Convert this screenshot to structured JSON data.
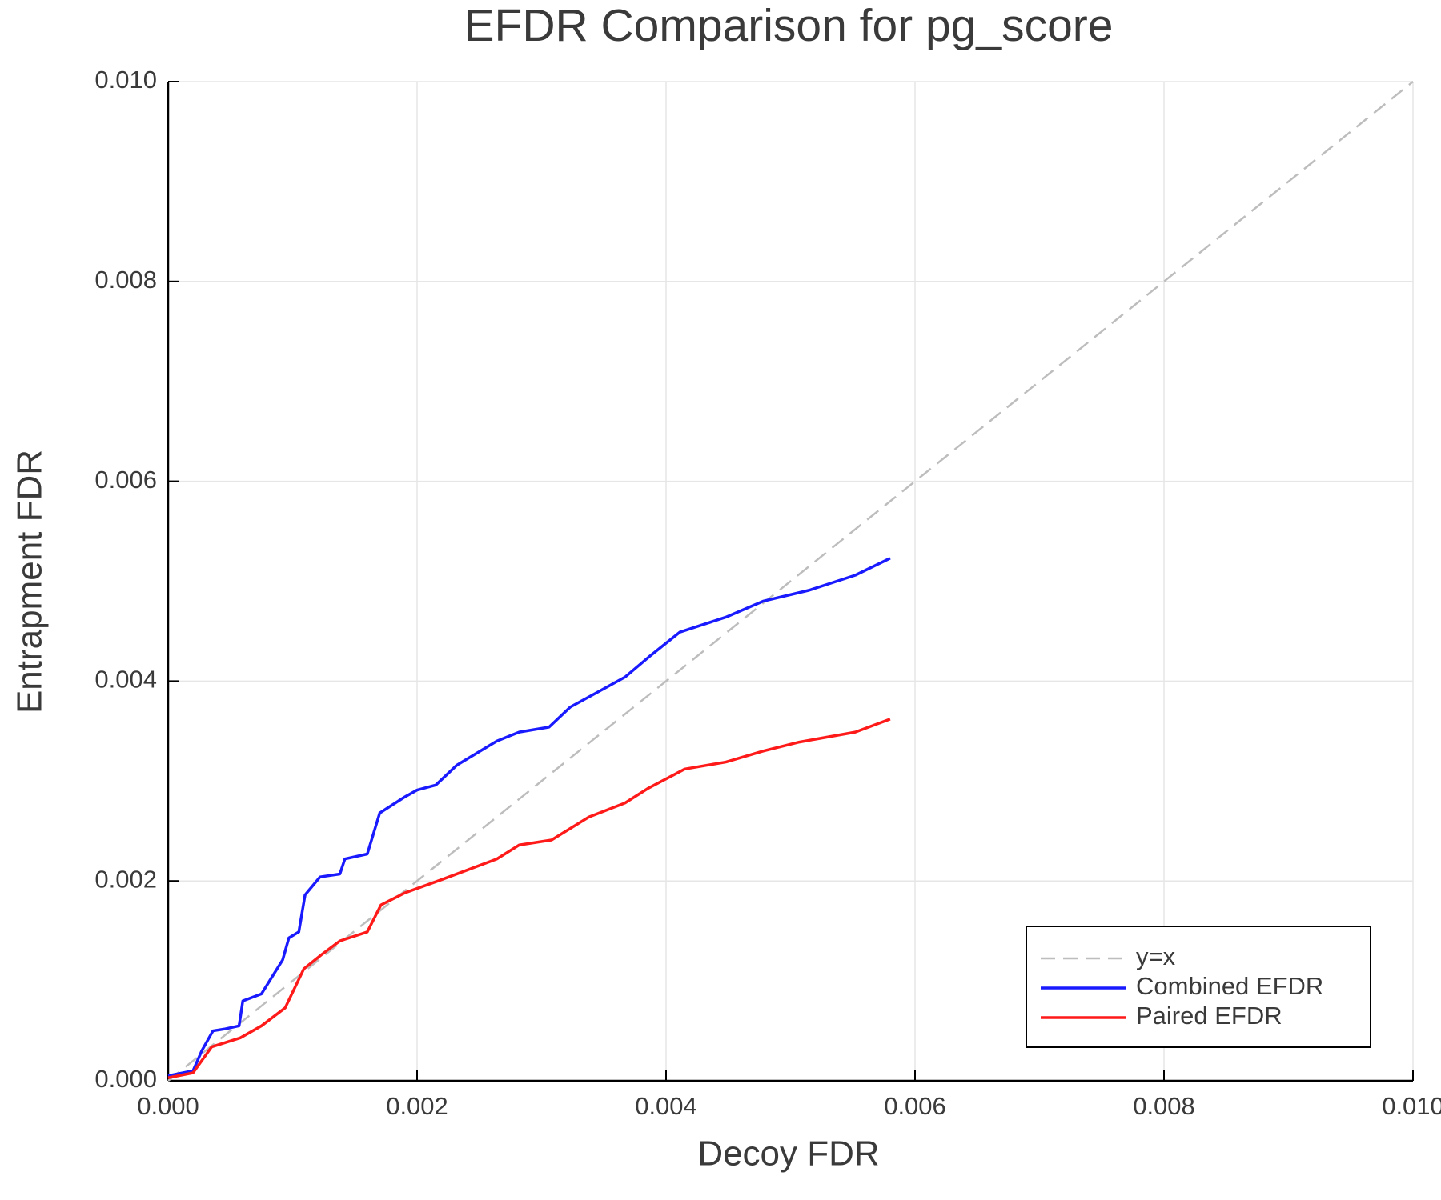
{
  "chart_data": {
    "type": "line",
    "title": "EFDR Comparison for pg_score",
    "xlabel": "Decoy FDR",
    "ylabel": "Entrapment FDR",
    "xlim": [
      0,
      0.01
    ],
    "ylim": [
      0,
      0.01
    ],
    "xticks": [
      {
        "value": 0,
        "label": "0.000"
      },
      {
        "value": 0.002,
        "label": "0.002"
      },
      {
        "value": 0.004,
        "label": "0.004"
      },
      {
        "value": 0.006,
        "label": "0.006"
      },
      {
        "value": 0.008,
        "label": "0.008"
      },
      {
        "value": 0.01,
        "label": "0.010"
      }
    ],
    "yticks": [
      {
        "value": 0,
        "label": "0.000"
      },
      {
        "value": 0.002,
        "label": "0.002"
      },
      {
        "value": 0.004,
        "label": "0.004"
      },
      {
        "value": 0.006,
        "label": "0.006"
      },
      {
        "value": 0.008,
        "label": "0.008"
      },
      {
        "value": 0.01,
        "label": "0.010"
      }
    ],
    "grid": true,
    "legend": "bottom-right",
    "series": [
      {
        "name": "y=x",
        "color": "#bdbdbd",
        "linestyle": "dashed",
        "x": [
          0,
          0.01
        ],
        "y": [
          0,
          0.01
        ]
      },
      {
        "name": "Combined EFDR",
        "color": "#1a1aff",
        "x": [
          0,
          0.0002,
          0.00027,
          0.00036,
          0.00046,
          0.00057,
          0.0006,
          0.00075,
          0.00083,
          0.00092,
          0.00097,
          0.00105,
          0.0011,
          0.00122,
          0.00138,
          0.00142,
          0.0016,
          0.0017,
          0.0019,
          0.002,
          0.00215,
          0.00232,
          0.00264,
          0.00282,
          0.00306,
          0.00323,
          0.00348,
          0.00367,
          0.00386,
          0.00411,
          0.00448,
          0.00478,
          0.00515,
          0.00552,
          0.0058
        ],
        "y": [
          5e-05,
          0.0001,
          0.0003,
          0.0005,
          0.00052,
          0.00055,
          0.0008,
          0.00087,
          0.00103,
          0.00121,
          0.00143,
          0.00149,
          0.00186,
          0.00204,
          0.00207,
          0.00222,
          0.00227,
          0.00268,
          0.00284,
          0.00291,
          0.00296,
          0.00316,
          0.0034,
          0.00349,
          0.00354,
          0.00374,
          0.00391,
          0.00404,
          0.00424,
          0.00449,
          0.00464,
          0.0048,
          0.00491,
          0.00506,
          0.00523
        ]
      },
      {
        "name": "Paired EFDR",
        "color": "#ff1a1a",
        "x": [
          0,
          0.0002,
          0.00035,
          0.00058,
          0.00075,
          0.00094,
          0.00109,
          0.00123,
          0.00138,
          0.0016,
          0.00171,
          0.0019,
          0.00219,
          0.00264,
          0.00282,
          0.00308,
          0.00338,
          0.00367,
          0.00386,
          0.00415,
          0.00448,
          0.00478,
          0.00507,
          0.00552,
          0.0058
        ],
        "y": [
          3e-05,
          8e-05,
          0.00034,
          0.00043,
          0.00055,
          0.00073,
          0.00112,
          0.00126,
          0.0014,
          0.00149,
          0.00176,
          0.00188,
          0.00201,
          0.00222,
          0.00236,
          0.00241,
          0.00264,
          0.00278,
          0.00293,
          0.00312,
          0.00319,
          0.0033,
          0.00339,
          0.00349,
          0.00362
        ]
      }
    ]
  }
}
